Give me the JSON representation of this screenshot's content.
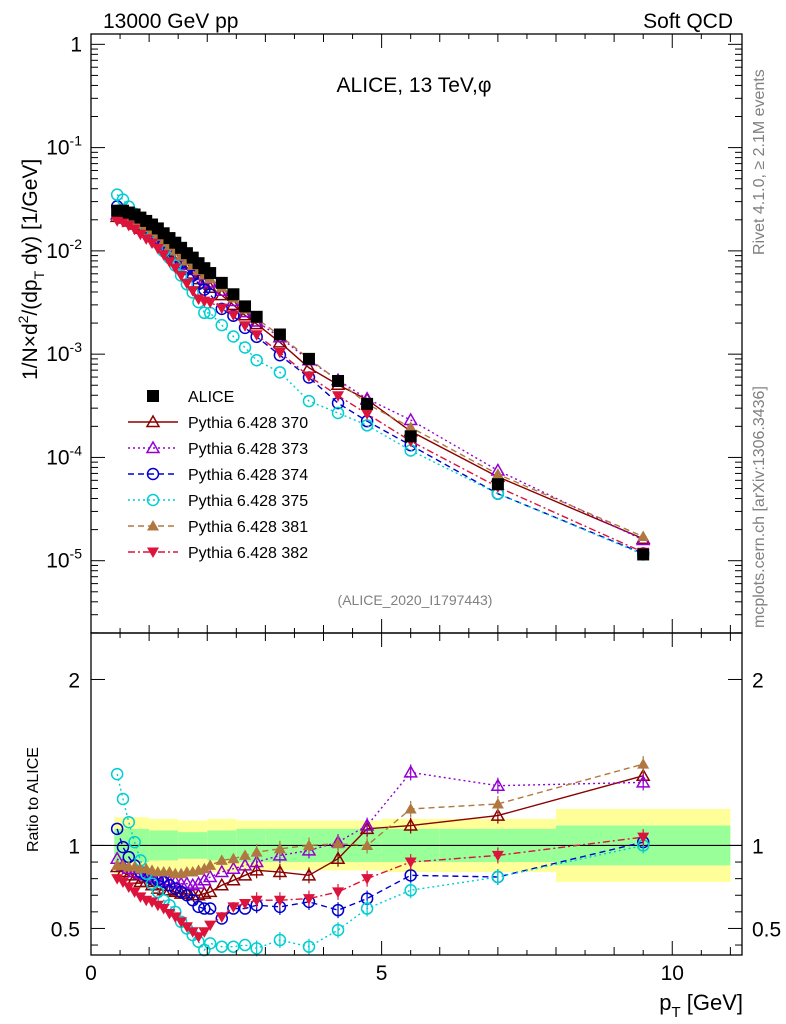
{
  "header": {
    "left": "13000 GeV pp",
    "right": "Soft QCD"
  },
  "chart_data": {
    "type": "scatter",
    "title": "ALICE, 13 TeV,φ",
    "top_ylabel": "1/N × d²/(dp_T dy) [1/GeV]",
    "bottom_ylabel": "Ratio to ALICE",
    "xlabel": "p_T [GeV]",
    "xlim": [
      0,
      11.2
    ],
    "top_ylim_log10": [
      -5.7,
      0.1
    ],
    "ratio_ylim": [
      0.34,
      2.28
    ],
    "x_ticks": [
      "0",
      "5",
      "10"
    ],
    "top_y_ticks": [
      {
        "base": "10",
        "exp": "-5"
      },
      {
        "base": "10",
        "exp": "-4"
      },
      {
        "base": "10",
        "exp": "-3"
      },
      {
        "base": "10",
        "exp": "-2"
      },
      {
        "base": "10",
        "exp": "-1"
      },
      {
        "base": "1",
        "exp": ""
      }
    ],
    "ratio_ticks": [
      "0.5",
      "1",
      "2"
    ],
    "side_label_top": "Rivet 4.1.0, ≥ 2.1M events",
    "side_label_bottom": "mcplots.cern.ch [arXiv:1306.3436]",
    "analysis_id": "(ALICE_2020_I1797443)",
    "band_edges": [
      0.4,
      1.0,
      1.5,
      2.0,
      2.5,
      3.0,
      4.0,
      5.0,
      6.0,
      8.0,
      11.0
    ],
    "band_stat": [
      0.1,
      0.09,
      0.08,
      0.09,
      0.1,
      0.1,
      0.1,
      0.1,
      0.1,
      0.12
    ],
    "band_total": [
      0.17,
      0.16,
      0.15,
      0.16,
      0.15,
      0.15,
      0.15,
      0.16,
      0.16,
      0.22
    ],
    "x": [
      0.45,
      0.55,
      0.65,
      0.75,
      0.85,
      0.95,
      1.05,
      1.15,
      1.25,
      1.35,
      1.45,
      1.55,
      1.65,
      1.75,
      1.85,
      1.95,
      2.05,
      2.25,
      2.45,
      2.65,
      2.85,
      3.25,
      3.75,
      4.25,
      4.75,
      5.5,
      7.0,
      9.5
    ],
    "data": {
      "name": "ALICE",
      "values": [
        0.0245,
        0.0245,
        0.0235,
        0.0225,
        0.021,
        0.0195,
        0.018,
        0.0165,
        0.0148,
        0.0133,
        0.012,
        0.0107,
        0.0095,
        0.0086,
        0.0076,
        0.0068,
        0.0061,
        0.0049,
        0.0038,
        0.0029,
        0.0023,
        0.00155,
        0.0009,
        0.00055,
        0.00033,
        0.00016,
        5.5e-05,
        1.15e-05
      ]
    },
    "series": [
      {
        "name": "Pythia 6.428 370",
        "color": "#8b0000",
        "marker": "triangle-open",
        "dash": "",
        "ratio": [
          0.87,
          0.84,
          0.82,
          0.8,
          0.78,
          0.78,
          0.76,
          0.74,
          0.73,
          0.73,
          0.72,
          0.71,
          0.71,
          0.7,
          0.7,
          0.71,
          0.72,
          0.76,
          0.79,
          0.82,
          0.85,
          0.84,
          0.82,
          0.92,
          1.1,
          1.12,
          1.18,
          1.42
        ]
      },
      {
        "name": "Pythia 6.428 373",
        "color": "#9400d3",
        "marker": "triangle-open",
        "dash": "2,3",
        "ratio": [
          0.92,
          0.88,
          0.86,
          0.84,
          0.83,
          0.82,
          0.81,
          0.8,
          0.79,
          0.78,
          0.78,
          0.77,
          0.77,
          0.76,
          0.77,
          0.79,
          0.81,
          0.84,
          0.86,
          0.88,
          0.9,
          0.94,
          0.97,
          1.02,
          1.12,
          1.44,
          1.36,
          1.38
        ]
      },
      {
        "name": "Pythia 6.428 374",
        "color": "#0000cd",
        "marker": "circle-open",
        "dash": "6,4",
        "ratio": [
          1.1,
          0.99,
          0.93,
          0.88,
          0.84,
          0.82,
          0.8,
          0.79,
          0.78,
          0.76,
          0.74,
          0.72,
          0.7,
          0.67,
          0.63,
          0.62,
          0.62,
          0.56,
          0.62,
          0.62,
          0.64,
          0.63,
          0.66,
          0.61,
          0.68,
          0.82,
          0.81,
          1.02
        ]
      },
      {
        "name": "Pythia 6.428 375",
        "color": "#00ced1",
        "marker": "circle-open",
        "dash": "2,3",
        "ratio": [
          1.43,
          1.28,
          1.14,
          1.02,
          0.91,
          0.83,
          0.77,
          0.72,
          0.67,
          0.64,
          0.6,
          0.54,
          0.5,
          0.46,
          0.42,
          0.37,
          0.41,
          0.39,
          0.39,
          0.4,
          0.38,
          0.43,
          0.39,
          0.49,
          0.62,
          0.73,
          0.81,
          1.0
        ]
      },
      {
        "name": "Pythia 6.428 381",
        "color": "#b07840",
        "marker": "triangle-filled",
        "dash": "6,4",
        "ratio": [
          0.88,
          0.88,
          0.87,
          0.87,
          0.86,
          0.86,
          0.85,
          0.84,
          0.84,
          0.84,
          0.83,
          0.83,
          0.84,
          0.84,
          0.85,
          0.86,
          0.88,
          0.91,
          0.92,
          0.94,
          0.96,
          0.98,
          1.0,
          1.01,
          1.0,
          1.22,
          1.25,
          1.49
        ]
      },
      {
        "name": "Pythia 6.428 382",
        "color": "#dc143c",
        "marker": "triangle-down-filled",
        "dash": "7,3,2,3",
        "ratio": [
          0.8,
          0.78,
          0.75,
          0.72,
          0.69,
          0.67,
          0.66,
          0.64,
          0.62,
          0.59,
          0.57,
          0.54,
          0.51,
          0.48,
          0.45,
          0.48,
          0.52,
          0.57,
          0.63,
          0.65,
          0.67,
          0.67,
          0.68,
          0.72,
          0.8,
          0.9,
          0.94,
          1.05
        ]
      }
    ]
  }
}
